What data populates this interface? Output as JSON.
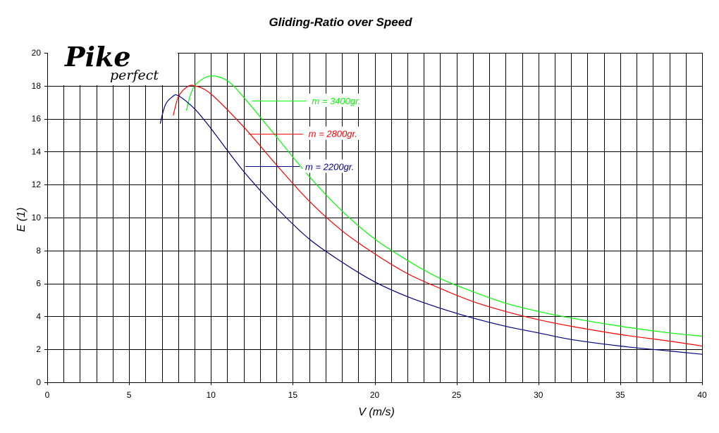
{
  "chart_data": {
    "type": "line",
    "title": "Gliding-Ratio over Speed",
    "xlabel": "V (m/s)",
    "ylabel": "E (1)",
    "xlim": [
      0,
      40
    ],
    "ylim": [
      0,
      20
    ],
    "x_ticks": [
      0,
      5,
      10,
      15,
      20,
      25,
      30,
      35,
      40
    ],
    "y_ticks": [
      0,
      2,
      4,
      6,
      8,
      10,
      12,
      14,
      16,
      18,
      20
    ],
    "grid": true,
    "logo": {
      "main": "Pike",
      "sub": "perfect"
    },
    "series": [
      {
        "name": "m = 3400gr.",
        "color": "#00ff00",
        "points": [
          [
            8.5,
            16.5
          ],
          [
            8.8,
            17.6
          ],
          [
            9.2,
            18.2
          ],
          [
            10,
            18.6
          ],
          [
            11,
            18.3
          ],
          [
            12,
            17.3
          ],
          [
            14,
            14.9
          ],
          [
            16,
            12.5
          ],
          [
            18,
            10.4
          ],
          [
            20,
            8.7
          ],
          [
            22,
            7.4
          ],
          [
            24,
            6.3
          ],
          [
            26,
            5.5
          ],
          [
            28,
            4.8
          ],
          [
            30,
            4.3
          ],
          [
            32,
            3.9
          ],
          [
            35,
            3.4
          ],
          [
            38,
            3.0
          ],
          [
            40,
            2.8
          ]
        ],
        "label_at": [
          12.5,
          17.1
        ]
      },
      {
        "name": "m = 2800gr.",
        "color": "#ff0000",
        "points": [
          [
            7.7,
            16.2
          ],
          [
            8.0,
            17.3
          ],
          [
            8.5,
            17.9
          ],
          [
            9,
            18.0
          ],
          [
            10,
            17.5
          ],
          [
            12,
            15.5
          ],
          [
            14,
            13.2
          ],
          [
            16,
            11.0
          ],
          [
            18,
            9.2
          ],
          [
            20,
            7.8
          ],
          [
            22,
            6.6
          ],
          [
            24,
            5.7
          ],
          [
            26,
            4.9
          ],
          [
            28,
            4.3
          ],
          [
            30,
            3.8
          ],
          [
            32,
            3.4
          ],
          [
            35,
            2.9
          ],
          [
            38,
            2.5
          ],
          [
            40,
            2.2
          ]
        ],
        "label_at": [
          12.3,
          15.1
        ]
      },
      {
        "name": "m = 2200gr.",
        "color": "#000080",
        "points": [
          [
            6.9,
            15.7
          ],
          [
            7.2,
            16.8
          ],
          [
            7.6,
            17.3
          ],
          [
            8,
            17.4
          ],
          [
            9,
            16.6
          ],
          [
            10,
            15.4
          ],
          [
            12,
            12.8
          ],
          [
            14,
            10.6
          ],
          [
            16,
            8.7
          ],
          [
            18,
            7.3
          ],
          [
            20,
            6.1
          ],
          [
            22,
            5.2
          ],
          [
            24,
            4.5
          ],
          [
            26,
            3.9
          ],
          [
            28,
            3.4
          ],
          [
            30,
            3.0
          ],
          [
            32,
            2.6
          ],
          [
            35,
            2.2
          ],
          [
            38,
            1.9
          ],
          [
            40,
            1.7
          ]
        ],
        "label_at": [
          12.1,
          13.1
        ]
      }
    ]
  }
}
